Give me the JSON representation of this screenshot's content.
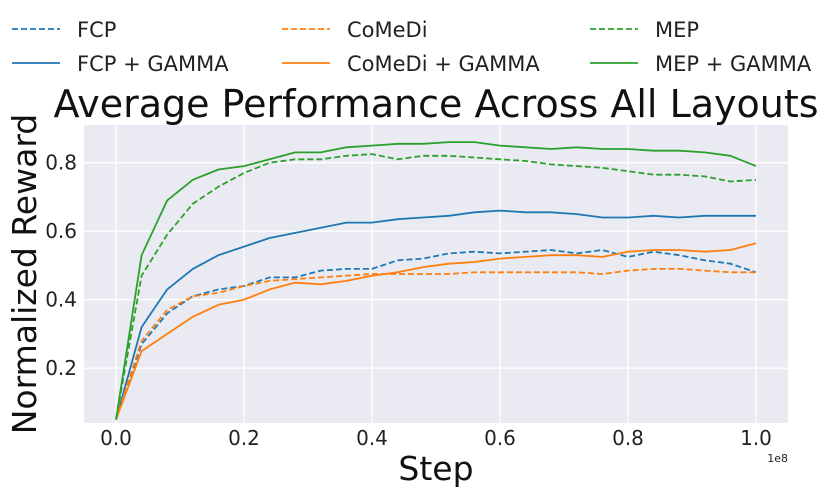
{
  "chart_data": {
    "type": "line",
    "title": "Average Performance Across All Layouts",
    "xlabel": "Step",
    "ylabel": "Normalized Reward",
    "x_offset_label": "1e8",
    "xlim": [
      -0.05,
      1.05
    ],
    "ylim": [
      0.04,
      0.91
    ],
    "xticks": [
      0.0,
      0.2,
      0.4,
      0.6,
      0.8,
      1.0
    ],
    "xtick_labels": [
      "0.0",
      "0.2",
      "0.4",
      "0.6",
      "0.8",
      "1.0"
    ],
    "yticks": [
      0.2,
      0.4,
      0.6,
      0.8
    ],
    "ytick_labels": [
      "0.2",
      "0.4",
      "0.6",
      "0.8"
    ],
    "grid": true,
    "legend_position": "top",
    "x": [
      0.0,
      0.04,
      0.08,
      0.12,
      0.16,
      0.2,
      0.24,
      0.28,
      0.32,
      0.36,
      0.4,
      0.44,
      0.48,
      0.52,
      0.56,
      0.6,
      0.64,
      0.68,
      0.72,
      0.76,
      0.8,
      0.84,
      0.88,
      0.92,
      0.96,
      1.0
    ],
    "series": [
      {
        "name": "FCP",
        "color": "#1f77b4",
        "style": "dashed",
        "values": [
          0.05,
          0.27,
          0.36,
          0.41,
          0.43,
          0.44,
          0.465,
          0.465,
          0.485,
          0.49,
          0.49,
          0.515,
          0.52,
          0.535,
          0.54,
          0.535,
          0.54,
          0.545,
          0.535,
          0.545,
          0.525,
          0.54,
          0.53,
          0.515,
          0.505,
          0.48
        ]
      },
      {
        "name": "FCP + GAMMA",
        "color": "#1f77b4",
        "style": "solid",
        "values": [
          0.05,
          0.32,
          0.43,
          0.49,
          0.53,
          0.555,
          0.58,
          0.595,
          0.61,
          0.625,
          0.625,
          0.635,
          0.64,
          0.645,
          0.655,
          0.66,
          0.655,
          0.655,
          0.65,
          0.64,
          0.64,
          0.645,
          0.64,
          0.645,
          0.645,
          0.645
        ]
      },
      {
        "name": "CoMeDi",
        "color": "#ff7f0e",
        "style": "dashed",
        "values": [
          0.05,
          0.28,
          0.37,
          0.41,
          0.42,
          0.44,
          0.455,
          0.46,
          0.465,
          0.47,
          0.475,
          0.475,
          0.475,
          0.475,
          0.48,
          0.48,
          0.48,
          0.48,
          0.48,
          0.475,
          0.485,
          0.49,
          0.49,
          0.485,
          0.48,
          0.48
        ]
      },
      {
        "name": "CoMeDi + GAMMA",
        "color": "#ff7f0e",
        "style": "solid",
        "values": [
          0.05,
          0.25,
          0.3,
          0.35,
          0.385,
          0.4,
          0.43,
          0.45,
          0.445,
          0.455,
          0.47,
          0.48,
          0.495,
          0.505,
          0.51,
          0.52,
          0.525,
          0.53,
          0.53,
          0.525,
          0.54,
          0.545,
          0.545,
          0.54,
          0.545,
          0.565
        ]
      },
      {
        "name": "MEP",
        "color": "#2ca02c",
        "style": "dashed",
        "values": [
          0.05,
          0.47,
          0.59,
          0.68,
          0.73,
          0.77,
          0.8,
          0.81,
          0.81,
          0.82,
          0.825,
          0.81,
          0.82,
          0.82,
          0.815,
          0.81,
          0.805,
          0.795,
          0.79,
          0.785,
          0.775,
          0.765,
          0.765,
          0.76,
          0.745,
          0.75
        ]
      },
      {
        "name": "MEP + GAMMA",
        "color": "#2ca02c",
        "style": "solid",
        "values": [
          0.05,
          0.53,
          0.69,
          0.75,
          0.78,
          0.79,
          0.81,
          0.83,
          0.83,
          0.845,
          0.85,
          0.855,
          0.855,
          0.86,
          0.86,
          0.85,
          0.845,
          0.84,
          0.845,
          0.84,
          0.84,
          0.835,
          0.835,
          0.83,
          0.82,
          0.79
        ]
      }
    ]
  }
}
